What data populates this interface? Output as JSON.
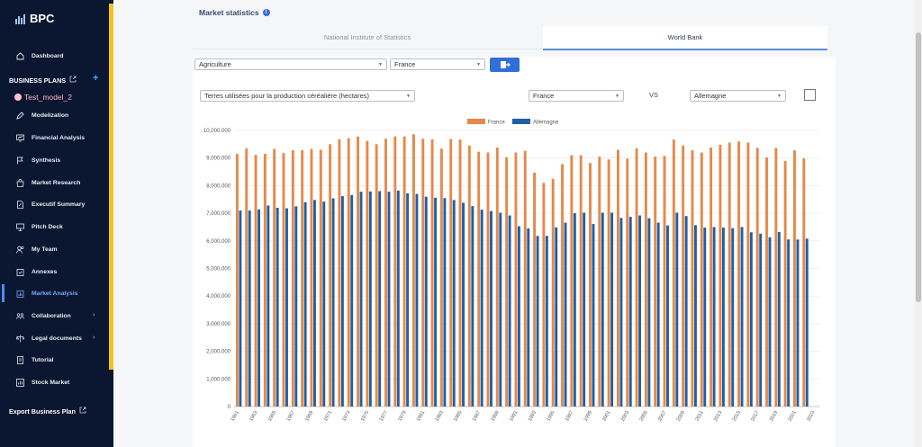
{
  "app": {
    "logo_text": "BPC"
  },
  "sidebar": {
    "dashboard": "Dashboard",
    "business_plans": "BUSINESS PLANS",
    "model_name": "Test_model_2",
    "items": [
      {
        "label": "Modelization",
        "icon": "pen-icon"
      },
      {
        "label": "Financial Analysis",
        "icon": "monitor-chart-icon"
      },
      {
        "label": "Synthesis",
        "icon": "flag-icon"
      },
      {
        "label": "Market Research",
        "icon": "shopping-bag-icon"
      },
      {
        "label": "Executif Summary",
        "icon": "document-edit-icon"
      },
      {
        "label": "Pitch Deck",
        "icon": "presentation-icon"
      },
      {
        "label": "My Team",
        "icon": "users-icon"
      },
      {
        "label": "Annexes",
        "icon": "clipboard-check-icon"
      },
      {
        "label": "Market Analysis",
        "icon": "clipboard-chart-icon"
      },
      {
        "label": "Collaboration",
        "icon": "group-icon"
      },
      {
        "label": "Legal documents",
        "icon": "legal-icon"
      },
      {
        "label": "Tutorial",
        "icon": "book-icon"
      },
      {
        "label": "Stock Market",
        "icon": "chart-box-icon"
      }
    ],
    "export_label": "Export Business Plan"
  },
  "page": {
    "title": "Market statistics",
    "tabs": [
      "National Institute of Statistics",
      "World Bank"
    ],
    "active_tab": "World Bank"
  },
  "filters": {
    "sector": "Agriculture",
    "country": "France",
    "indicator": "Terres utilisées pour la production céréalière (hectares)",
    "compare_a": "France",
    "vs_label": "VS",
    "compare_b": "Allemagne"
  },
  "colors": {
    "france": "#e5894a",
    "allemagne": "#1f5fa6",
    "accent": "#2f6fd6"
  },
  "chart_data": {
    "type": "bar",
    "legend_position": "top-center",
    "ylim": [
      0,
      10000000
    ],
    "yticks": [
      "0",
      "1,000,000",
      "2,000,000",
      "3,000,000",
      "4,000,000",
      "5,000,000",
      "6,000,000",
      "7,000,000",
      "8,000,000",
      "9,000,000",
      "10,000,000"
    ],
    "categories": [
      "1961",
      "1962",
      "1963",
      "1964",
      "1965",
      "1966",
      "1967",
      "1968",
      "1969",
      "1970",
      "1971",
      "1972",
      "1973",
      "1974",
      "1975",
      "1976",
      "1977",
      "1978",
      "1979",
      "1980",
      "1981",
      "1982",
      "1983",
      "1984",
      "1985",
      "1986",
      "1987",
      "1988",
      "1989",
      "1990",
      "1991",
      "1992",
      "1993",
      "1994",
      "1995",
      "1996",
      "1997",
      "1998",
      "1999",
      "2000",
      "2001",
      "2002",
      "2003",
      "2004",
      "2005",
      "2006",
      "2007",
      "2008",
      "2009",
      "2010",
      "2011",
      "2012",
      "2013",
      "2014",
      "2015",
      "2016",
      "2017",
      "2018",
      "2019",
      "2020",
      "2021",
      "2022",
      "2023"
    ],
    "series": [
      {
        "name": "France",
        "values": [
          9150000,
          9350000,
          9120000,
          9150000,
          9330000,
          9180000,
          9280000,
          9280000,
          9330000,
          9300000,
          9500000,
          9680000,
          9720000,
          9780000,
          9620000,
          9500000,
          9700000,
          9780000,
          9780000,
          9860000,
          9700000,
          9680000,
          9340000,
          9690000,
          9670000,
          9450000,
          9230000,
          9200000,
          9380000,
          9030000,
          9200000,
          9260000,
          8470000,
          8100000,
          8250000,
          8780000,
          9100000,
          9100000,
          8820000,
          9050000,
          8950000,
          9300000,
          8980000,
          9350000,
          9200000,
          9050000,
          9080000,
          9670000,
          9450000,
          9280000,
          9200000,
          9380000,
          9480000,
          9560000,
          9600000,
          9560000,
          9370000,
          9020000,
          9370000,
          8890000,
          9280000,
          8990000,
          null
        ]
      },
      {
        "name": "Allemagne",
        "values": [
          7100000,
          7100000,
          7140000,
          7280000,
          7200000,
          7180000,
          7250000,
          7400000,
          7480000,
          7420000,
          7540000,
          7620000,
          7660000,
          7780000,
          7790000,
          7800000,
          7780000,
          7820000,
          7720000,
          7700000,
          7600000,
          7560000,
          7550000,
          7480000,
          7380000,
          7260000,
          7130000,
          7080000,
          7020000,
          6920000,
          6530000,
          6450000,
          6180000,
          6180000,
          6490000,
          6660000,
          7000000,
          7020000,
          6610000,
          7020000,
          7020000,
          6830000,
          6870000,
          6920000,
          6820000,
          6660000,
          6560000,
          7020000,
          6900000,
          6570000,
          6480000,
          6500000,
          6480000,
          6460000,
          6500000,
          6310000,
          6260000,
          6130000,
          6320000,
          6050000,
          6050000,
          6080000,
          null
        ]
      }
    ]
  }
}
